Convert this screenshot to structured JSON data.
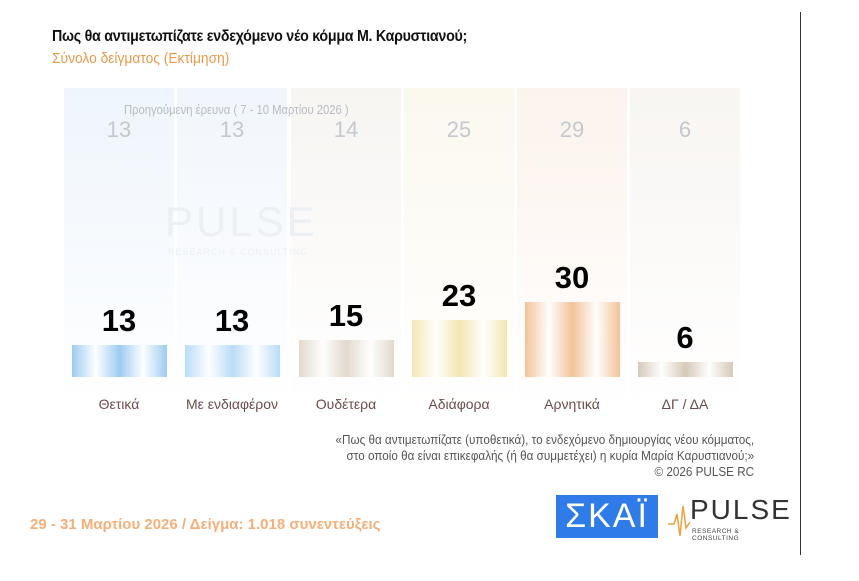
{
  "header": {
    "title": "Πως θα αντιμετωπίζατε ενδεχόμενο νέο κόμμα Μ. Καρυστιανού;",
    "subtitle": "Σύνολο δείγματος  (Εκτίμηση)"
  },
  "chart_data": {
    "type": "bar",
    "categories": [
      "Θετικά",
      "Με ενδιαφέρον",
      "Ουδέτερα",
      "Αδιάφορα",
      "Αρνητικά",
      "ΔΓ / ΔΑ"
    ],
    "values": [
      13,
      13,
      15,
      23,
      30,
      6
    ],
    "previous_label": "Προηγούμενη έρευνα ( 7 - 10 Μαρτίου 2026 )",
    "previous_values": [
      13,
      13,
      14,
      25,
      29,
      6
    ],
    "colors": [
      "#9ecbf2",
      "#b9dcf7",
      "#e2d9cc",
      "#f3e6b2",
      "#f2c39a",
      "#d6c9b8"
    ],
    "bg_colors": [
      "#eef5fc",
      "#f1f6fc",
      "#f7f5f2",
      "#fbf8ee",
      "#fcf3ec",
      "#f8f5f2"
    ]
  },
  "notes": {
    "question_line1": "«Πως θα αντιμετωπίζατε (υποθετικά), το ενδεχόμενο δημιουργίας νέου κόμματος,",
    "question_line2": "στο οποίο θα είναι επικεφαλής (ή θα συμμετέχει) η κυρία Μαρία Καρυστιανού;»",
    "copyright": "©  2026  PULSE RC"
  },
  "footer": {
    "text": "29 - 31  Μαρτίου 2026  /  Δείγμα:  1.018 συνεντεύξεις"
  },
  "logos": {
    "skai": "ΣΚΑΪ",
    "pulse": "PULSE",
    "pulse_sub": "RESEARCH & CONSULTING"
  }
}
